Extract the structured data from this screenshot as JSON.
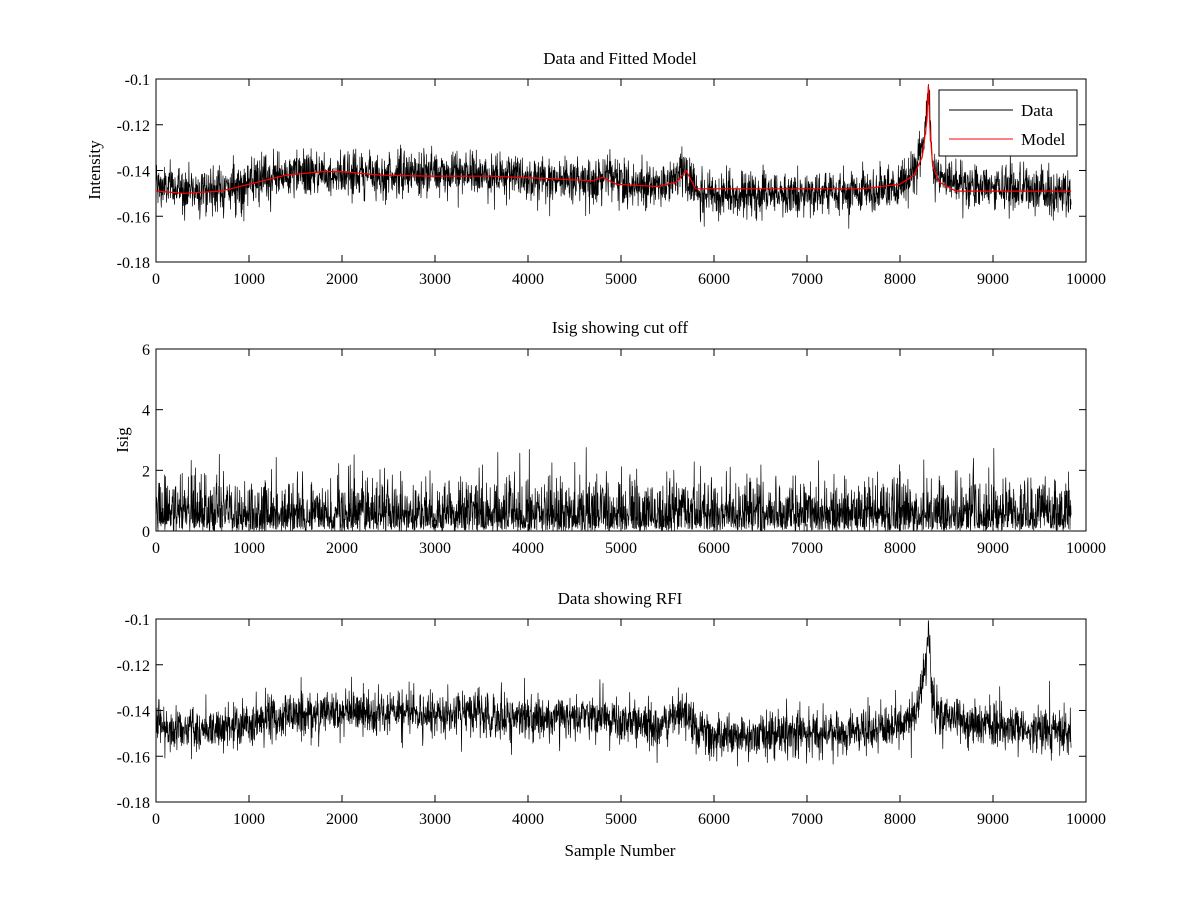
{
  "chart_data": [
    {
      "type": "line",
      "title": "Data and Fitted Model",
      "xlabel": "",
      "ylabel": "Intensity",
      "xlim": [
        0,
        10000
      ],
      "ylim": [
        -0.18,
        -0.1
      ],
      "xticks": [
        0,
        1000,
        2000,
        3000,
        4000,
        5000,
        6000,
        7000,
        8000,
        9000,
        10000
      ],
      "xtick_labels": [
        "0",
        "1000",
        "2000",
        "3000",
        "4000",
        "5000",
        "6000",
        "7000",
        "8000",
        "9000",
        "10000"
      ],
      "yticks": [
        -0.18,
        -0.16,
        -0.14,
        -0.12,
        -0.1
      ],
      "ytick_labels": [
        "-0.18",
        "-0.16",
        "-0.14",
        "-0.12",
        "-0.1"
      ],
      "legend_position": "top-right",
      "series": [
        {
          "name": "Data",
          "color": "#000000",
          "style": "noisy",
          "noise": 0.005,
          "sample_range": [
            0,
            9840
          ],
          "x": [
            0,
            300,
            700,
            1000,
            1400,
            1800,
            2000,
            2400,
            3000,
            3600,
            4200,
            4700,
            4800,
            4950,
            5400,
            5600,
            5700,
            5800,
            6000,
            7000,
            7600,
            8000,
            8150,
            8240,
            8290,
            8310,
            8330,
            8360,
            8420,
            8500,
            8800,
            9200,
            9840
          ],
          "y": [
            -0.147,
            -0.148,
            -0.148,
            -0.146,
            -0.142,
            -0.141,
            -0.141,
            -0.142,
            -0.141,
            -0.142,
            -0.143,
            -0.144,
            -0.143,
            -0.145,
            -0.146,
            -0.143,
            -0.141,
            -0.148,
            -0.151,
            -0.15,
            -0.149,
            -0.146,
            -0.141,
            -0.13,
            -0.113,
            -0.104,
            -0.125,
            -0.14,
            -0.142,
            -0.144,
            -0.146,
            -0.148,
            -0.15
          ]
        },
        {
          "name": "Model",
          "color": "#ff0000",
          "style": "smooth",
          "sample_range": [
            0,
            9840
          ],
          "x": [
            0,
            300,
            700,
            1000,
            1400,
            1800,
            2000,
            2400,
            3000,
            3600,
            4200,
            4700,
            4800,
            4950,
            5400,
            5600,
            5700,
            5800,
            6000,
            7000,
            7600,
            7800,
            8000,
            8150,
            8240,
            8290,
            8305,
            8320,
            8350,
            8420,
            8600,
            9000,
            9840
          ],
          "y": [
            -0.149,
            -0.15,
            -0.149,
            -0.146,
            -0.142,
            -0.1405,
            -0.1405,
            -0.142,
            -0.1425,
            -0.1425,
            -0.1435,
            -0.1445,
            -0.143,
            -0.146,
            -0.147,
            -0.145,
            -0.14,
            -0.148,
            -0.148,
            -0.148,
            -0.148,
            -0.147,
            -0.146,
            -0.142,
            -0.134,
            -0.118,
            -0.102,
            -0.12,
            -0.138,
            -0.145,
            -0.149,
            -0.149,
            -0.149
          ]
        }
      ]
    },
    {
      "type": "line",
      "title": "Isig showing cut off",
      "xlabel": "",
      "ylabel": "Isig",
      "xlim": [
        0,
        10000
      ],
      "ylim": [
        0,
        6
      ],
      "xticks": [
        0,
        1000,
        2000,
        3000,
        4000,
        5000,
        6000,
        7000,
        8000,
        9000,
        10000
      ],
      "xtick_labels": [
        "0",
        "1000",
        "2000",
        "3000",
        "4000",
        "5000",
        "6000",
        "7000",
        "8000",
        "9000",
        "10000"
      ],
      "yticks": [
        0,
        2,
        4,
        6
      ],
      "ytick_labels": [
        "0",
        "2",
        "4",
        "6"
      ],
      "series": [
        {
          "name": "Isig",
          "color": "#000000",
          "style": "halfnormal",
          "scale": 0.8,
          "max": 3.8,
          "sample_range": [
            0,
            9840
          ]
        }
      ]
    },
    {
      "type": "line",
      "title": "Data showing RFI",
      "xlabel": "Sample Number",
      "ylabel": "",
      "xlim": [
        0,
        10000
      ],
      "ylim": [
        -0.18,
        -0.1
      ],
      "xticks": [
        0,
        1000,
        2000,
        3000,
        4000,
        5000,
        6000,
        7000,
        8000,
        9000,
        10000
      ],
      "xtick_labels": [
        "0",
        "1000",
        "2000",
        "3000",
        "4000",
        "5000",
        "6000",
        "7000",
        "8000",
        "9000",
        "10000"
      ],
      "yticks": [
        -0.18,
        -0.16,
        -0.14,
        -0.12,
        -0.1
      ],
      "ytick_labels": [
        "-0.18",
        "-0.16",
        "-0.14",
        "-0.12",
        "-0.1"
      ],
      "series": [
        {
          "name": "Data",
          "color": "#000000",
          "style": "noisy",
          "noise": 0.005,
          "sample_range": [
            0,
            9840
          ],
          "x": [
            0,
            300,
            700,
            1000,
            1400,
            1800,
            2000,
            2400,
            3000,
            3600,
            4200,
            4700,
            4800,
            4950,
            5400,
            5600,
            5700,
            5800,
            6000,
            7000,
            7600,
            8000,
            8150,
            8240,
            8290,
            8310,
            8330,
            8360,
            8420,
            8500,
            8800,
            9200,
            9840
          ],
          "y": [
            -0.147,
            -0.148,
            -0.148,
            -0.146,
            -0.142,
            -0.141,
            -0.141,
            -0.142,
            -0.141,
            -0.142,
            -0.143,
            -0.144,
            -0.143,
            -0.145,
            -0.146,
            -0.143,
            -0.141,
            -0.148,
            -0.151,
            -0.15,
            -0.149,
            -0.146,
            -0.141,
            -0.13,
            -0.113,
            -0.104,
            -0.125,
            -0.14,
            -0.142,
            -0.144,
            -0.146,
            -0.148,
            -0.15
          ]
        }
      ]
    }
  ]
}
